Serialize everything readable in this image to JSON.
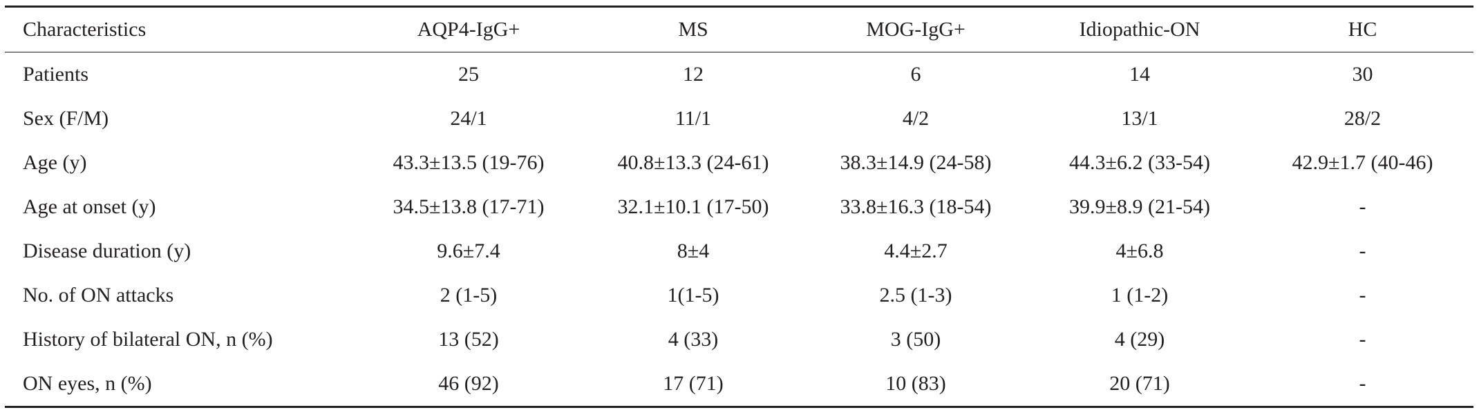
{
  "table": {
    "header": [
      "Characteristics",
      "AQP4-IgG+",
      "MS",
      "MOG-IgG+",
      "Idiopathic-ON",
      "HC"
    ],
    "rows": [
      [
        "Patients",
        "25",
        "12",
        "6",
        "14",
        "30"
      ],
      [
        "Sex (F/M)",
        "24/1",
        "11/1",
        "4/2",
        "13/1",
        "28/2"
      ],
      [
        "Age (y)",
        "43.3±13.5 (19-76)",
        "40.8±13.3 (24-61)",
        "38.3±14.9 (24-58)",
        "44.3±6.2 (33-54)",
        "42.9±1.7 (40-46)"
      ],
      [
        "Age at onset (y)",
        "34.5±13.8 (17-71)",
        "32.1±10.1 (17-50)",
        "33.8±16.3 (18-54)",
        "39.9±8.9 (21-54)",
        "-"
      ],
      [
        "Disease duration (y)",
        "9.6±7.4",
        "8±4",
        "4.4±2.7",
        "4±6.8",
        "-"
      ],
      [
        "No. of ON attacks",
        "2 (1-5)",
        "1(1-5)",
        "2.5 (1-3)",
        "1 (1-2)",
        "-"
      ],
      [
        "History of bilateral ON, n (%)",
        "13 (52)",
        "4 (33)",
        "3 (50)",
        "4 (29)",
        "-"
      ],
      [
        "ON eyes, n (%)",
        "46 (92)",
        "17 (71)",
        "10 (83)",
        "20 (71)",
        "-"
      ]
    ]
  }
}
